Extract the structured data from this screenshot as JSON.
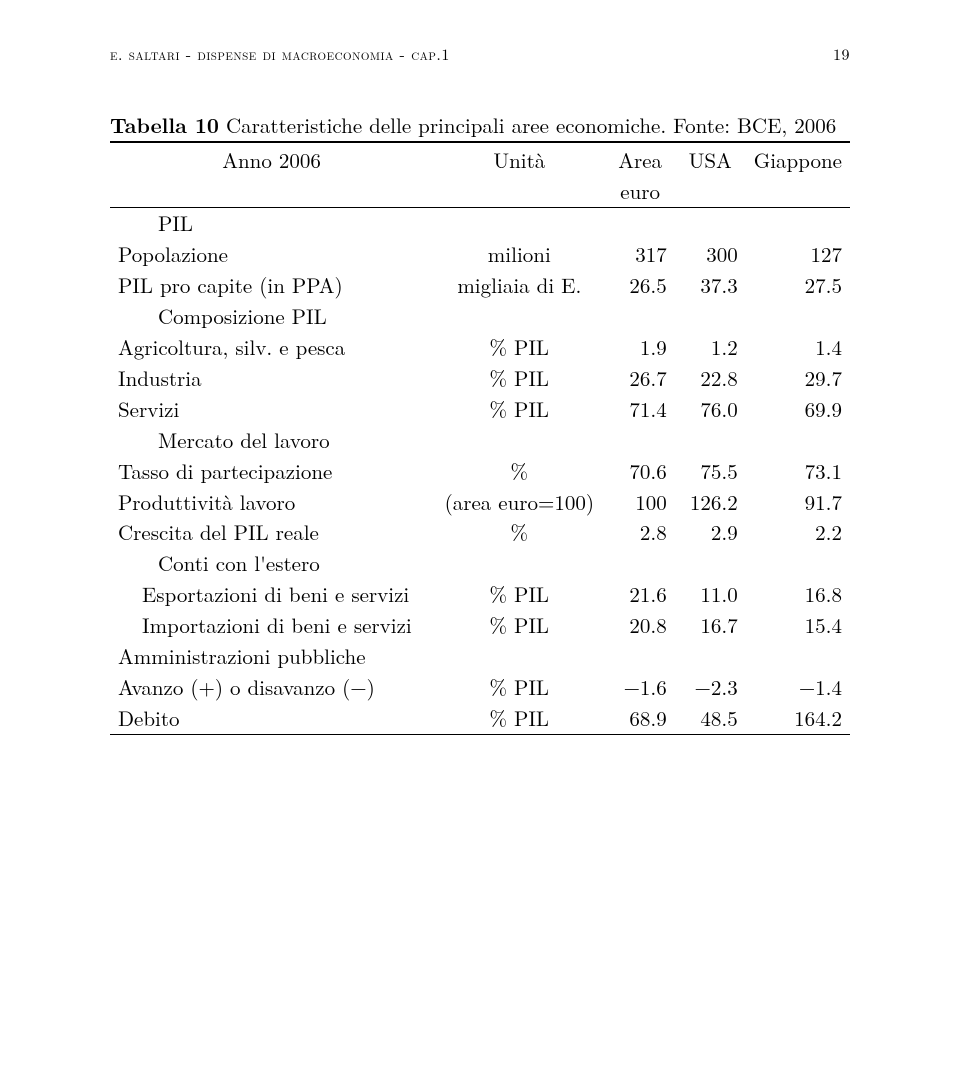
{
  "header": {
    "left": "e. saltari - dispense di macroeconomia - cap.1",
    "page_number": "19"
  },
  "caption": {
    "label": "Tabella 10",
    "text": "Caratteristiche delle principali aree economiche. Fonte: BCE, 2006"
  },
  "table": {
    "head": {
      "year_label": "Anno 2006",
      "unit_label": "Unità",
      "area_top": "Area",
      "area_bottom": "euro",
      "col_usa": "USA",
      "col_jp": "Giappone"
    },
    "sections": [
      {
        "title": "PIL",
        "indent": 1,
        "rows": [
          {
            "label": "Popolazione",
            "unit": "milioni",
            "v": [
              "317",
              "300",
              "127"
            ]
          },
          {
            "label": "PIL pro capite (in PPA)",
            "unit": "migliaia di E.",
            "v": [
              "26.5",
              "37.3",
              "27.5"
            ]
          }
        ]
      },
      {
        "title": "Composizione PIL",
        "indent": 1,
        "rows": [
          {
            "label": "Agricoltura, silv. e pesca",
            "unit": "% PIL",
            "v": [
              "1.9",
              "1.2",
              "1.4"
            ]
          },
          {
            "label": "Industria",
            "unit": "% PIL",
            "v": [
              "26.7",
              "22.8",
              "29.7"
            ]
          },
          {
            "label": "Servizi",
            "unit": "% PIL",
            "v": [
              "71.4",
              "76.0",
              "69.9"
            ]
          }
        ]
      },
      {
        "title": "Mercato del lavoro",
        "indent": 1,
        "rows": [
          {
            "label": "Tasso di partecipazione",
            "unit": "%",
            "v": [
              "70.6",
              "75.5",
              "73.1"
            ]
          },
          {
            "label": "Produttività lavoro",
            "unit": "(area euro=100)",
            "v": [
              "100",
              "126.2",
              "91.7"
            ]
          },
          {
            "label": "Crescita del PIL reale",
            "unit": "%",
            "v": [
              "2.8",
              "2.9",
              "2.2"
            ]
          }
        ]
      },
      {
        "title": "Conti con l'estero",
        "indent": 1,
        "rows": [
          {
            "label": "Esportazioni di beni e servizi",
            "label_indent": 2,
            "unit": "% PIL",
            "v": [
              "21.6",
              "11.0",
              "16.8"
            ]
          },
          {
            "label": "Importazioni di beni e servizi",
            "label_indent": 2,
            "unit": "% PIL",
            "v": [
              "20.8",
              "16.7",
              "15.4"
            ]
          }
        ]
      },
      {
        "title": "Amministrazioni pubbliche",
        "indent": 0,
        "rows": [
          {
            "label": "Avanzo (+) o disavanzo (−)",
            "unit": "% PIL",
            "v": [
              "−1.6",
              "−2.3",
              "−1.4"
            ]
          },
          {
            "label": "Debito",
            "unit": "% PIL",
            "v": [
              "68.9",
              "48.5",
              "164.2"
            ]
          }
        ]
      }
    ]
  }
}
